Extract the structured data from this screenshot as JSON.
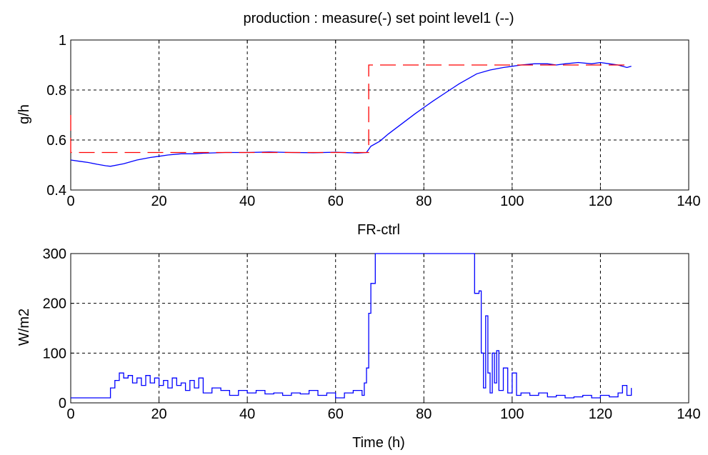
{
  "chart_data": [
    {
      "type": "line",
      "title": "production : measure(-) set point level1 (--)",
      "xlabel": "FR-ctrl",
      "ylabel": "g/h",
      "xlim": [
        0,
        140
      ],
      "ylim": [
        0.4,
        1.0
      ],
      "xticks": [
        0,
        20,
        40,
        60,
        80,
        100,
        120,
        140
      ],
      "yticks": [
        0.4,
        0.6,
        0.8,
        1.0
      ],
      "ytick_labels": [
        "0.4",
        "0.6",
        "0.8",
        "1"
      ],
      "grid": true,
      "series": [
        {
          "style": "solid",
          "color": "#0000ff",
          "x": [
            0,
            2,
            4,
            6,
            8,
            9,
            12,
            15,
            18,
            20,
            22,
            25,
            28,
            30,
            35,
            40,
            45,
            50,
            55,
            60,
            65,
            67,
            68,
            70,
            72,
            75,
            78,
            80,
            82,
            85,
            88,
            90,
            92,
            95,
            98,
            100,
            102,
            105,
            108,
            110,
            112,
            115,
            118,
            120,
            122,
            124,
            126,
            127
          ],
          "y": [
            0.52,
            0.515,
            0.51,
            0.503,
            0.497,
            0.495,
            0.505,
            0.52,
            0.53,
            0.535,
            0.54,
            0.545,
            0.545,
            0.547,
            0.55,
            0.55,
            0.552,
            0.55,
            0.549,
            0.551,
            0.548,
            0.55,
            0.575,
            0.595,
            0.625,
            0.665,
            0.705,
            0.73,
            0.755,
            0.79,
            0.825,
            0.845,
            0.865,
            0.88,
            0.89,
            0.895,
            0.9,
            0.905,
            0.905,
            0.9,
            0.905,
            0.91,
            0.905,
            0.91,
            0.905,
            0.9,
            0.89,
            0.895
          ]
        },
        {
          "style": "dashed",
          "color": "#ff0000",
          "x": [
            0,
            0,
            0,
            67.5,
            67.5,
            127
          ],
          "y": [
            0.7,
            0.55,
            0.55,
            0.55,
            0.9,
            0.9
          ]
        }
      ]
    },
    {
      "type": "line",
      "title": "",
      "xlabel": "Time (h)",
      "ylabel": "W/m2",
      "xlim": [
        0,
        140
      ],
      "ylim": [
        0,
        300
      ],
      "xticks": [
        0,
        20,
        40,
        60,
        80,
        100,
        120,
        140
      ],
      "yticks": [
        0,
        100,
        200,
        300
      ],
      "ytick_labels": [
        "0",
        "100",
        "200",
        "300"
      ],
      "grid": true,
      "series": [
        {
          "style": "step",
          "color": "#0000ff",
          "x": [
            0,
            8,
            9,
            10,
            11,
            12,
            13,
            14,
            15,
            16,
            17,
            18,
            19,
            20,
            21,
            22,
            23,
            24,
            25,
            26,
            27,
            28,
            29,
            30,
            32,
            34,
            36,
            38,
            40,
            42,
            44,
            46,
            48,
            50,
            52,
            54,
            56,
            58,
            60,
            62,
            64,
            66,
            66.5,
            67,
            67.5,
            68,
            69,
            70,
            91,
            91.5,
            92.5,
            93,
            93.5,
            94,
            94.5,
            95,
            95.5,
            96,
            96.5,
            97,
            98,
            99,
            100,
            101,
            102,
            104,
            106,
            108,
            110,
            112,
            114,
            116,
            118,
            120,
            122,
            124,
            125,
            126,
            127
          ],
          "y": [
            10,
            10,
            30,
            45,
            60,
            50,
            55,
            40,
            50,
            35,
            55,
            40,
            50,
            35,
            45,
            30,
            50,
            35,
            40,
            25,
            45,
            30,
            50,
            20,
            30,
            25,
            15,
            25,
            20,
            25,
            18,
            20,
            15,
            20,
            18,
            25,
            15,
            20,
            10,
            20,
            25,
            15,
            40,
            70,
            180,
            240,
            300,
            300,
            300,
            220,
            225,
            100,
            30,
            175,
            60,
            20,
            100,
            40,
            105,
            25,
            70,
            20,
            60,
            15,
            20,
            15,
            20,
            12,
            15,
            10,
            12,
            15,
            10,
            15,
            12,
            20,
            35,
            15,
            30
          ]
        }
      ]
    }
  ]
}
